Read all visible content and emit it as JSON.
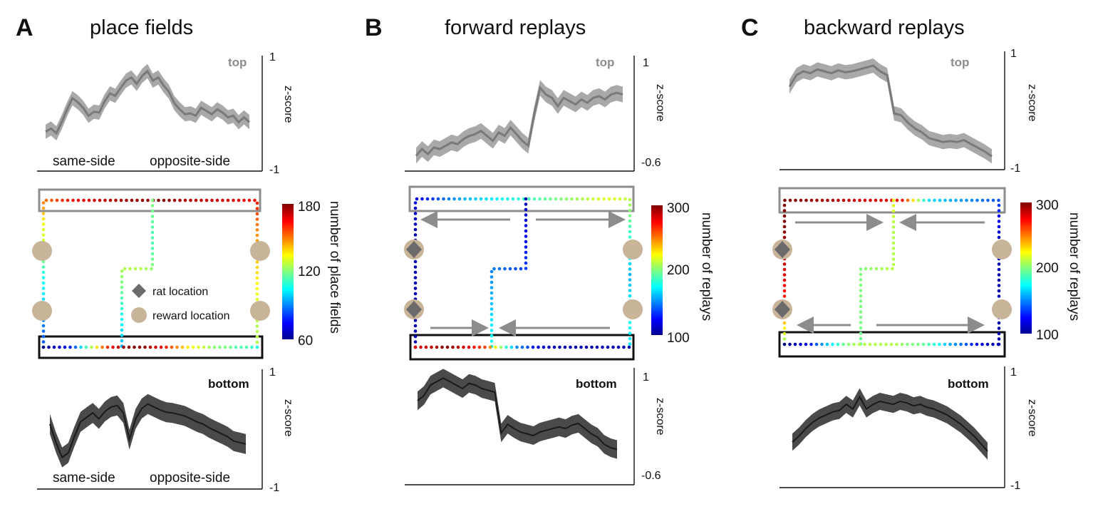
{
  "panels": [
    {
      "letter": "A",
      "title": "place fields",
      "top": {
        "tag": "top",
        "yaxis": "z-score",
        "ymax": "1",
        "ymin": "-1",
        "left_label": "same-side",
        "right_label": "opposite-side"
      },
      "maze": {
        "colorbar_max": "180",
        "colorbar_mid": "120",
        "colorbar_min": "60",
        "colorbar_label": "number of place fields",
        "legend_rat": "rat location",
        "legend_reward": "reward location"
      },
      "bottom": {
        "tag": "bottom",
        "yaxis": "z-score",
        "ymax": "1",
        "ymin": "-1",
        "left_label": "same-side",
        "right_label": "opposite-side"
      }
    },
    {
      "letter": "B",
      "title": "forward replays",
      "top": {
        "tag": "top",
        "yaxis": "z-score",
        "ymax": "1",
        "ymin": "-0.6"
      },
      "maze": {
        "colorbar_max": "300",
        "colorbar_mid": "200",
        "colorbar_min": "100",
        "colorbar_label": "number of replays"
      },
      "bottom": {
        "tag": "bottom",
        "yaxis": "z-score",
        "ymax": "1",
        "ymin": "-0.6"
      }
    },
    {
      "letter": "C",
      "title": "backward replays",
      "top": {
        "tag": "top",
        "yaxis": "z-score",
        "ymax": "1",
        "ymin": "-1"
      },
      "maze": {
        "colorbar_max": "300",
        "colorbar_mid": "200",
        "colorbar_min": "100",
        "colorbar_label": "number of replays"
      },
      "bottom": {
        "tag": "bottom",
        "yaxis": "z-score",
        "ymax": "1",
        "ymin": "-1"
      }
    }
  ],
  "colors": {
    "top_line": "#7a7a7a",
    "top_band": "#a9a9a9",
    "bottom_line": "#1a1a1a",
    "bottom_band": "#4a4a4a",
    "rat_marker": "#6b6b6b",
    "reward_marker": "#c8b499",
    "top_box": "#8c8c8c",
    "bottom_box": "#111111",
    "arrow": "#8c8c8c"
  },
  "curves": {
    "A_top": [
      0.1,
      0.14,
      0.08,
      0.22,
      0.38,
      0.52,
      0.47,
      0.4,
      0.3,
      0.35,
      0.34,
      0.48,
      0.58,
      0.55,
      0.65,
      0.74,
      0.78,
      0.7,
      0.8,
      0.86,
      0.74,
      0.78,
      0.68,
      0.6,
      0.46,
      0.38,
      0.32,
      0.33,
      0.3,
      0.4,
      0.36,
      0.32,
      0.38,
      0.34,
      0.28,
      0.3,
      0.22,
      0.28,
      0.22
    ],
    "A_bottom": [
      0.55,
      0.3,
      0.1,
      0.16,
      0.38,
      0.58,
      0.64,
      0.7,
      0.62,
      0.72,
      0.78,
      0.8,
      0.7,
      0.34,
      0.62,
      0.76,
      0.82,
      0.78,
      0.74,
      0.71,
      0.7,
      0.68,
      0.66,
      0.62,
      0.58,
      0.55,
      0.5,
      0.46,
      0.42,
      0.38,
      0.32,
      0.3,
      0.28
    ],
    "B_top": [
      0.1,
      0.18,
      0.12,
      0.2,
      0.18,
      0.22,
      0.26,
      0.24,
      0.3,
      0.34,
      0.36,
      0.4,
      0.34,
      0.28,
      0.38,
      0.34,
      0.44,
      0.36,
      0.28,
      0.22,
      0.6,
      0.92,
      0.84,
      0.8,
      0.7,
      0.8,
      0.76,
      0.72,
      0.78,
      0.74,
      0.8,
      0.82,
      0.78,
      0.84,
      0.86,
      0.84
    ],
    "B_bottom": [
      0.72,
      0.78,
      0.9,
      0.94,
      0.98,
      0.94,
      0.9,
      0.86,
      0.92,
      0.9,
      0.86,
      0.84,
      0.82,
      0.35,
      0.45,
      0.4,
      0.36,
      0.34,
      0.32,
      0.36,
      0.38,
      0.4,
      0.42,
      0.4,
      0.44,
      0.46,
      0.4,
      0.34,
      0.3,
      0.22,
      0.18,
      0.16
    ],
    "C_top": [
      0.78,
      0.9,
      0.94,
      0.92,
      0.96,
      0.94,
      0.92,
      0.95,
      0.93,
      0.94,
      0.96,
      0.98,
      1.0,
      0.94,
      0.9,
      0.5,
      0.48,
      0.4,
      0.34,
      0.3,
      0.24,
      0.22,
      0.2,
      0.21,
      0.2,
      0.22,
      0.18,
      0.14,
      0.1,
      0.05
    ],
    "C_bottom": [
      0.3,
      0.38,
      0.48,
      0.56,
      0.62,
      0.66,
      0.7,
      0.72,
      0.8,
      0.74,
      0.9,
      0.74,
      0.8,
      0.84,
      0.82,
      0.8,
      0.84,
      0.82,
      0.78,
      0.8,
      0.76,
      0.74,
      0.7,
      0.66,
      0.6,
      0.54,
      0.46,
      0.38,
      0.28,
      0.18
    ]
  },
  "tracks": {
    "A": [
      [
        0.2,
        0.25,
        0.35,
        0.4,
        0.55,
        0.6,
        0.75,
        0.85,
        0.9,
        0.95,
        0.98,
        1.0,
        0.95,
        0.92,
        0.9,
        0.85,
        0.75,
        0.7,
        0.65,
        0.6,
        0.55,
        0.55
      ],
      [
        0.5,
        0.48,
        0.45,
        0.45,
        0.5,
        0.55,
        0.55,
        0.5,
        0.45,
        0.4,
        0.35,
        0.3
      ],
      [
        0.0,
        0.05,
        0.1,
        0.2,
        0.4,
        0.6,
        0.8,
        0.9,
        0.98,
        1.0,
        0.98,
        0.92,
        0.85,
        0.75,
        0.65,
        0.6,
        0.55,
        0.5,
        0.5,
        0.45,
        0.45,
        0.4
      ]
    ],
    "B": [
      [
        0.05,
        0.05,
        0.05,
        0.05,
        0.05,
        0.05,
        0.1,
        0.2,
        0.3,
        0.35,
        0.4,
        0.45,
        0.5,
        0.55,
        0.6,
        0.55,
        0.45,
        0.4,
        0.3,
        0.35,
        0.4,
        0.35
      ],
      [
        0.05,
        0.1,
        0.15,
        0.2,
        0.25,
        0.3,
        0.35,
        0.4
      ],
      [
        0.9,
        0.92,
        0.95,
        1.0,
        0.95,
        0.9,
        0.85,
        0.8,
        0.6,
        0.4,
        0.25,
        0.2,
        0.1,
        0.05,
        0.05,
        0.05,
        0.05,
        0.05,
        0.05,
        0.05,
        0.05,
        0.05
      ]
    ],
    "C": [
      [
        0.5,
        0.7,
        0.85,
        0.92,
        0.95,
        1.0,
        1.0,
        0.98,
        0.95,
        0.92,
        0.9,
        0.85,
        0.35,
        0.3,
        0.25,
        0.2,
        0.1,
        0.05,
        0.05,
        0.05,
        0.05,
        0.05
      ],
      [
        0.6,
        0.55,
        0.55,
        0.55,
        0.5,
        0.5,
        0.5,
        0.48
      ],
      [
        0.0,
        0.05,
        0.1,
        0.2,
        0.3,
        0.4,
        0.5,
        0.55,
        0.55,
        0.55,
        0.55,
        0.55,
        0.5,
        0.5,
        0.45,
        0.4,
        0.3,
        0.25,
        0.2,
        0.1,
        0.05,
        0.05
      ]
    ]
  }
}
